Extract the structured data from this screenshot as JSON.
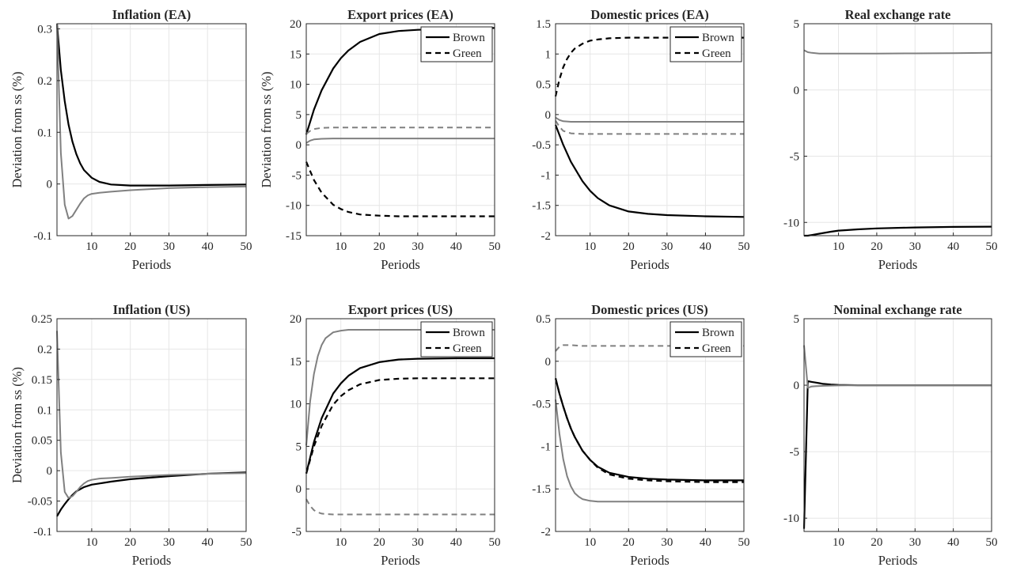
{
  "figure": {
    "background": "#ffffff"
  },
  "chart_data": [
    {
      "type": "line",
      "title": "Inflation (EA)",
      "xlabel": "Periods",
      "ylabel": "Deviation from ss (%)",
      "xlim": [
        1,
        50
      ],
      "ylim": [
        -0.1,
        0.31
      ],
      "xticks": [
        10,
        20,
        30,
        40,
        50
      ],
      "xtick_labels": [
        "10",
        "20",
        "30",
        "40",
        "50"
      ],
      "yticks": [
        -0.1,
        0,
        0.1,
        0.2,
        0.3
      ],
      "ytick_labels": [
        "-0.1",
        "0",
        "0.1",
        "0.2",
        "0.3"
      ],
      "grid": true,
      "legend": null,
      "series": [
        {
          "color": "#000000",
          "dashed": false,
          "x": [
            1,
            2,
            3,
            4,
            5,
            6,
            7,
            8,
            10,
            12,
            15,
            20,
            30,
            40,
            50
          ],
          "y": [
            0.31,
            0.22,
            0.16,
            0.115,
            0.082,
            0.058,
            0.04,
            0.027,
            0.012,
            0.004,
            -0.001,
            -0.003,
            -0.003,
            -0.002,
            -0.001
          ]
        },
        {
          "color": "#808080",
          "dashed": false,
          "x": [
            1,
            2,
            3,
            4,
            5,
            6,
            7,
            8,
            9,
            10,
            12,
            15,
            20,
            30,
            40,
            50
          ],
          "y": [
            0.31,
            0.06,
            -0.04,
            -0.067,
            -0.062,
            -0.05,
            -0.038,
            -0.028,
            -0.022,
            -0.019,
            -0.017,
            -0.015,
            -0.012,
            -0.008,
            -0.006,
            -0.005
          ]
        }
      ]
    },
    {
      "type": "line",
      "title": "Export prices (EA)",
      "xlabel": "Periods",
      "ylabel": "Deviation from ss (%)",
      "xlim": [
        1,
        50
      ],
      "ylim": [
        -15,
        20
      ],
      "xticks": [
        10,
        20,
        30,
        40,
        50
      ],
      "xtick_labels": [
        "10",
        "20",
        "30",
        "40",
        "50"
      ],
      "yticks": [
        -15,
        -10,
        -5,
        0,
        5,
        10,
        15,
        20
      ],
      "ytick_labels": [
        "-15",
        "-10",
        "-5",
        "0",
        "5",
        "10",
        "15",
        "20"
      ],
      "grid": true,
      "legend": {
        "position": "top-right",
        "entries": [
          "Brown",
          "Green"
        ]
      },
      "series": [
        {
          "name": "Brown",
          "color": "#000000",
          "dashed": false,
          "x": [
            1,
            3,
            5,
            8,
            10,
            12,
            15,
            20,
            25,
            30,
            40,
            50
          ],
          "y": [
            1.7,
            5.8,
            9.0,
            12.6,
            14.3,
            15.6,
            17.0,
            18.3,
            18.8,
            19.0,
            19.2,
            19.3
          ]
        },
        {
          "name": "Green",
          "color": "#000000",
          "dashed": true,
          "x": [
            1,
            3,
            5,
            8,
            10,
            12,
            15,
            20,
            25,
            30,
            40,
            50
          ],
          "y": [
            -2.8,
            -5.8,
            -7.9,
            -9.9,
            -10.6,
            -11.1,
            -11.5,
            -11.7,
            -11.8,
            -11.8,
            -11.8,
            -11.8
          ]
        },
        {
          "color": "#808080",
          "dashed": false,
          "x": [
            1,
            2,
            3,
            5,
            8,
            10,
            20,
            30,
            40,
            50
          ],
          "y": [
            0.3,
            0.7,
            0.9,
            1.0,
            1.05,
            1.05,
            1.05,
            1.05,
            1.05,
            1.05
          ]
        },
        {
          "color": "#808080",
          "dashed": true,
          "x": [
            1,
            2,
            3,
            5,
            8,
            10,
            20,
            30,
            40,
            50
          ],
          "y": [
            1.8,
            2.3,
            2.6,
            2.8,
            2.85,
            2.85,
            2.85,
            2.85,
            2.85,
            2.85
          ]
        }
      ]
    },
    {
      "type": "line",
      "title": "Domestic prices (EA)",
      "xlabel": "Periods",
      "ylabel": "",
      "xlim": [
        1,
        50
      ],
      "ylim": [
        -2,
        1.5
      ],
      "xticks": [
        10,
        20,
        30,
        40,
        50
      ],
      "xtick_labels": [
        "10",
        "20",
        "30",
        "40",
        "50"
      ],
      "yticks": [
        -2,
        -1.5,
        -1,
        -0.5,
        0,
        0.5,
        1,
        1.5
      ],
      "ytick_labels": [
        "-2",
        "-1.5",
        "-1",
        "-0.5",
        "0",
        "0.5",
        "1",
        "1.5"
      ],
      "grid": true,
      "legend": {
        "position": "top-right",
        "entries": [
          "Brown",
          "Green"
        ]
      },
      "series": [
        {
          "name": "Brown",
          "color": "#000000",
          "dashed": false,
          "x": [
            1,
            3,
            5,
            8,
            10,
            12,
            15,
            20,
            25,
            30,
            40,
            50
          ],
          "y": [
            -0.17,
            -0.5,
            -0.78,
            -1.1,
            -1.26,
            -1.38,
            -1.5,
            -1.6,
            -1.64,
            -1.66,
            -1.68,
            -1.69
          ]
        },
        {
          "name": "Green",
          "color": "#000000",
          "dashed": true,
          "x": [
            1,
            2,
            3,
            4,
            5,
            6,
            8,
            10,
            12,
            15,
            20,
            30,
            40,
            50
          ],
          "y": [
            0.3,
            0.58,
            0.78,
            0.92,
            1.02,
            1.09,
            1.17,
            1.22,
            1.24,
            1.26,
            1.27,
            1.27,
            1.27,
            1.27
          ]
        },
        {
          "color": "#808080",
          "dashed": false,
          "x": [
            1,
            2,
            3,
            5,
            8,
            10,
            20,
            30,
            40,
            50
          ],
          "y": [
            -0.05,
            -0.09,
            -0.11,
            -0.12,
            -0.12,
            -0.12,
            -0.12,
            -0.12,
            -0.12,
            -0.12
          ]
        },
        {
          "color": "#808080",
          "dashed": true,
          "x": [
            1,
            2,
            3,
            5,
            8,
            10,
            20,
            30,
            40,
            50
          ],
          "y": [
            -0.1,
            -0.2,
            -0.27,
            -0.31,
            -0.32,
            -0.32,
            -0.32,
            -0.32,
            -0.32,
            -0.32
          ]
        }
      ]
    },
    {
      "type": "line",
      "title": "Real exchange rate",
      "xlabel": "Periods",
      "ylabel": "",
      "xlim": [
        1,
        50
      ],
      "ylim": [
        -11,
        5
      ],
      "xticks": [
        10,
        20,
        30,
        40,
        50
      ],
      "xtick_labels": [
        "10",
        "20",
        "30",
        "40",
        "50"
      ],
      "yticks": [
        -10,
        -5,
        0,
        5
      ],
      "ytick_labels": [
        "-10",
        "-5",
        "0",
        "5"
      ],
      "grid": true,
      "legend": null,
      "series": [
        {
          "color": "#000000",
          "dashed": false,
          "x": [
            1,
            2,
            3,
            5,
            8,
            10,
            12,
            15,
            20,
            30,
            40,
            50
          ],
          "y": [
            -11.0,
            -11.0,
            -10.95,
            -10.85,
            -10.7,
            -10.62,
            -10.58,
            -10.52,
            -10.45,
            -10.38,
            -10.34,
            -10.32
          ]
        },
        {
          "color": "#808080",
          "dashed": false,
          "x": [
            1,
            2,
            3,
            5,
            8,
            10,
            20,
            30,
            40,
            50
          ],
          "y": [
            3.0,
            2.85,
            2.8,
            2.75,
            2.75,
            2.75,
            2.75,
            2.76,
            2.78,
            2.8
          ]
        }
      ]
    },
    {
      "type": "line",
      "title": "Inflation (US)",
      "xlabel": "Periods",
      "ylabel": "Deviation from ss (%)",
      "xlim": [
        1,
        50
      ],
      "ylim": [
        -0.1,
        0.25
      ],
      "xticks": [
        10,
        20,
        30,
        40,
        50
      ],
      "xtick_labels": [
        "10",
        "20",
        "30",
        "40",
        "50"
      ],
      "yticks": [
        -0.1,
        -0.05,
        0,
        0.05,
        0.1,
        0.15,
        0.2,
        0.25
      ],
      "ytick_labels": [
        "-0.1",
        "-0.05",
        "0",
        "0.05",
        "0.1",
        "0.15",
        "0.2",
        "0.25"
      ],
      "grid": true,
      "legend": null,
      "series": [
        {
          "color": "#000000",
          "dashed": false,
          "x": [
            1,
            2,
            3,
            4,
            5,
            6,
            8,
            10,
            12,
            15,
            20,
            30,
            40,
            50
          ],
          "y": [
            -0.075,
            -0.064,
            -0.055,
            -0.047,
            -0.04,
            -0.034,
            -0.027,
            -0.023,
            -0.021,
            -0.018,
            -0.014,
            -0.009,
            -0.005,
            -0.003
          ]
        },
        {
          "color": "#808080",
          "dashed": false,
          "x": [
            1,
            2,
            3,
            4,
            5,
            6,
            7,
            8,
            9,
            10,
            12,
            15,
            20,
            30,
            40,
            50
          ],
          "y": [
            0.23,
            0.03,
            -0.035,
            -0.045,
            -0.042,
            -0.035,
            -0.027,
            -0.021,
            -0.017,
            -0.015,
            -0.013,
            -0.012,
            -0.01,
            -0.007,
            -0.005,
            -0.004
          ]
        }
      ]
    },
    {
      "type": "line",
      "title": "Export prices (US)",
      "xlabel": "Periods",
      "ylabel": "",
      "xlim": [
        1,
        50
      ],
      "ylim": [
        -5,
        20
      ],
      "xticks": [
        10,
        20,
        30,
        40,
        50
      ],
      "xtick_labels": [
        "10",
        "20",
        "30",
        "40",
        "50"
      ],
      "yticks": [
        -5,
        0,
        5,
        10,
        15,
        20
      ],
      "ytick_labels": [
        "-5",
        "0",
        "5",
        "10",
        "15",
        "20"
      ],
      "grid": true,
      "legend": {
        "position": "top-right",
        "entries": [
          "Brown",
          "Green"
        ]
      },
      "series": [
        {
          "name": "Brown",
          "color": "#000000",
          "dashed": false,
          "x": [
            1,
            3,
            5,
            8,
            10,
            12,
            15,
            20,
            25,
            30,
            40,
            50
          ],
          "y": [
            1.8,
            5.5,
            8.3,
            11.2,
            12.4,
            13.3,
            14.2,
            14.9,
            15.2,
            15.3,
            15.35,
            15.35
          ]
        },
        {
          "name": "Green",
          "color": "#000000",
          "dashed": true,
          "x": [
            1,
            3,
            5,
            8,
            10,
            12,
            15,
            20,
            25,
            30,
            40,
            50
          ],
          "y": [
            1.8,
            5.0,
            7.4,
            9.9,
            10.9,
            11.6,
            12.3,
            12.8,
            12.95,
            13.0,
            13.0,
            13.0
          ]
        },
        {
          "color": "#808080",
          "dashed": false,
          "x": [
            1,
            2,
            3,
            4,
            5,
            6,
            8,
            10,
            12,
            15,
            20,
            30,
            40,
            50
          ],
          "y": [
            5.1,
            10.3,
            13.5,
            15.6,
            16.9,
            17.7,
            18.4,
            18.6,
            18.7,
            18.7,
            18.7,
            18.7,
            18.7,
            18.7
          ]
        },
        {
          "color": "#808080",
          "dashed": true,
          "x": [
            1,
            2,
            3,
            4,
            5,
            6,
            8,
            10,
            15,
            20,
            30,
            40,
            50
          ],
          "y": [
            -1.2,
            -2.0,
            -2.5,
            -2.75,
            -2.9,
            -2.95,
            -3.0,
            -3.0,
            -3.0,
            -3.0,
            -3.0,
            -3.0,
            -3.0
          ]
        }
      ]
    },
    {
      "type": "line",
      "title": "Domestic prices (US)",
      "xlabel": "Periods",
      "ylabel": "",
      "xlim": [
        1,
        50
      ],
      "ylim": [
        -2,
        0.5
      ],
      "xticks": [
        10,
        20,
        30,
        40,
        50
      ],
      "xtick_labels": [
        "10",
        "20",
        "30",
        "40",
        "50"
      ],
      "yticks": [
        -2,
        -1.5,
        -1,
        -0.5,
        0,
        0.5
      ],
      "ytick_labels": [
        "-2",
        "-1.5",
        "-1",
        "-0.5",
        "0",
        "0.5"
      ],
      "grid": true,
      "legend": {
        "position": "top-right",
        "entries": [
          "Brown",
          "Green"
        ]
      },
      "series": [
        {
          "name": "Brown",
          "color": "#000000",
          "dashed": false,
          "x": [
            1,
            2,
            3,
            4,
            5,
            6,
            8,
            10,
            12,
            15,
            20,
            25,
            30,
            40,
            50
          ],
          "y": [
            -0.2,
            -0.38,
            -0.53,
            -0.67,
            -0.79,
            -0.89,
            -1.05,
            -1.16,
            -1.24,
            -1.31,
            -1.36,
            -1.38,
            -1.39,
            -1.4,
            -1.4
          ]
        },
        {
          "name": "Green",
          "color": "#000000",
          "dashed": true,
          "x": [
            1,
            2,
            3,
            4,
            5,
            6,
            8,
            10,
            12,
            15,
            20,
            25,
            30,
            40,
            50
          ],
          "y": [
            -0.2,
            -0.38,
            -0.53,
            -0.67,
            -0.79,
            -0.89,
            -1.05,
            -1.16,
            -1.25,
            -1.33,
            -1.38,
            -1.4,
            -1.41,
            -1.42,
            -1.42
          ]
        },
        {
          "color": "#808080",
          "dashed": false,
          "x": [
            1,
            2,
            3,
            4,
            5,
            6,
            7,
            8,
            10,
            12,
            15,
            20,
            30,
            40,
            50
          ],
          "y": [
            -0.45,
            -0.85,
            -1.15,
            -1.35,
            -1.47,
            -1.55,
            -1.59,
            -1.62,
            -1.64,
            -1.65,
            -1.65,
            -1.65,
            -1.65,
            -1.65,
            -1.65
          ]
        },
        {
          "color": "#808080",
          "dashed": true,
          "x": [
            1,
            2,
            3,
            5,
            8,
            10,
            20,
            30,
            40,
            50
          ],
          "y": [
            0.12,
            0.17,
            0.19,
            0.19,
            0.18,
            0.18,
            0.18,
            0.18,
            0.18,
            0.18
          ]
        }
      ]
    },
    {
      "type": "line",
      "title": "Nominal exchange rate",
      "xlabel": "Periods",
      "ylabel": "",
      "xlim": [
        1,
        50
      ],
      "ylim": [
        -11,
        5
      ],
      "xticks": [
        10,
        20,
        30,
        40,
        50
      ],
      "xtick_labels": [
        "10",
        "20",
        "30",
        "40",
        "50"
      ],
      "yticks": [
        -10,
        -5,
        0,
        5
      ],
      "ytick_labels": [
        "-10",
        "-5",
        "0",
        "5"
      ],
      "grid": true,
      "legend": null,
      "series": [
        {
          "color": "#000000",
          "dashed": false,
          "x": [
            1,
            2,
            3,
            4,
            5,
            6,
            8,
            10,
            15,
            20,
            30,
            40,
            50
          ],
          "y": [
            -10.8,
            0.3,
            0.25,
            0.2,
            0.15,
            0.1,
            0.05,
            0.02,
            0.0,
            0.0,
            0.0,
            0.0,
            0.0
          ]
        },
        {
          "color": "#808080",
          "dashed": false,
          "x": [
            1,
            2,
            3,
            4,
            5,
            6,
            8,
            10,
            15,
            20,
            30,
            40,
            50
          ],
          "y": [
            3.0,
            -0.2,
            -0.1,
            -0.08,
            -0.06,
            -0.05,
            -0.03,
            -0.02,
            0.0,
            0.0,
            0.0,
            0.0,
            0.0
          ]
        }
      ]
    }
  ]
}
